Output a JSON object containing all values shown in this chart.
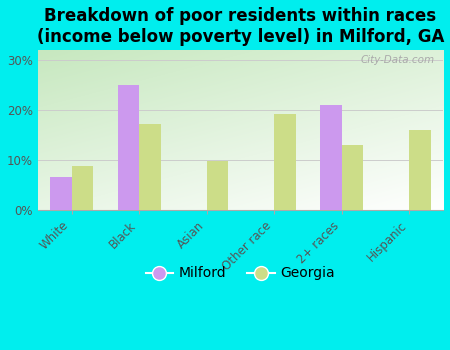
{
  "title": "Breakdown of poor residents within races\n(income below poverty level) in Milford, GA",
  "categories": [
    "White",
    "Black",
    "Asian",
    "Other race",
    "2+ races",
    "Hispanic"
  ],
  "milford_values": [
    6.5,
    25.0,
    0,
    0,
    21.0,
    0
  ],
  "georgia_values": [
    8.8,
    17.2,
    9.7,
    19.2,
    13.0,
    16.0
  ],
  "milford_color": "#cc99ee",
  "georgia_color": "#ccdd88",
  "background_color": "#00eeee",
  "ylim": [
    0,
    32
  ],
  "yticks": [
    0,
    10,
    20,
    30
  ],
  "ytick_labels": [
    "0%",
    "10%",
    "20%",
    "30%"
  ],
  "title_fontsize": 12,
  "tick_fontsize": 8.5,
  "legend_fontsize": 10,
  "bar_width": 0.32,
  "watermark": "City-Data.com"
}
